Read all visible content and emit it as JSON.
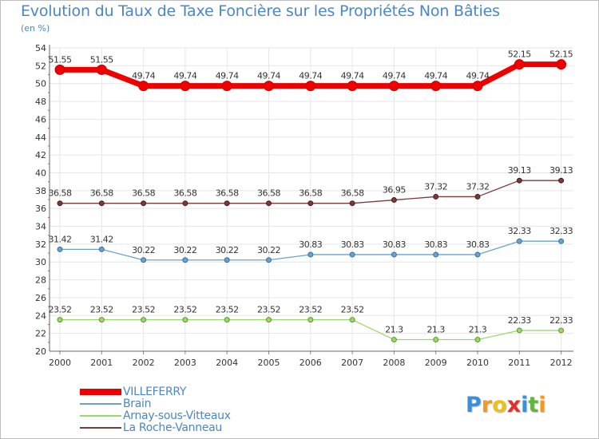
{
  "chart_data": {
    "type": "line",
    "title": "Evolution du Taux de Taxe Foncière sur les Propriétés Non Bâties",
    "subtitle": "(en %)",
    "xlabel": "",
    "ylabel": "",
    "ylim": [
      20,
      54
    ],
    "yticks": [
      20,
      22,
      24,
      26,
      28,
      30,
      32,
      34,
      36,
      38,
      40,
      42,
      44,
      46,
      48,
      50,
      52,
      54
    ],
    "categories": [
      "2000",
      "2001",
      "2002",
      "2003",
      "2004",
      "2005",
      "2006",
      "2007",
      "2008",
      "2009",
      "2010",
      "2011",
      "2012"
    ],
    "grid": true,
    "legend_position": "bottom-left",
    "series": [
      {
        "name": "VILLEFERRY",
        "color": "#ee0000",
        "values": [
          51.55,
          51.55,
          49.74,
          49.74,
          49.74,
          49.74,
          49.74,
          49.74,
          49.74,
          49.74,
          49.74,
          52.15,
          52.15
        ],
        "labels": [
          "51.55",
          "51.55",
          "49.74",
          "49.74",
          "49.74",
          "49.74",
          "49.74",
          "49.74",
          "49.74",
          "49.74",
          "49.74",
          "52.15",
          "52.15"
        ]
      },
      {
        "name": "Brain",
        "color": "#6aa2cf",
        "values": [
          31.42,
          31.42,
          30.22,
          30.22,
          30.22,
          30.22,
          30.83,
          30.83,
          30.83,
          30.83,
          30.83,
          32.33,
          32.33
        ],
        "labels": [
          "31.42",
          "31.42",
          "30.22",
          "30.22",
          "30.22",
          "30.22",
          "30.83",
          "30.83",
          "30.83",
          "30.83",
          "30.83",
          "32.33",
          "32.33"
        ]
      },
      {
        "name": "Arnay-sous-Vitteaux",
        "color": "#9ad86a",
        "values": [
          23.52,
          23.52,
          23.52,
          23.52,
          23.52,
          23.52,
          23.52,
          23.52,
          21.3,
          21.3,
          21.3,
          22.33,
          22.33
        ],
        "labels": [
          "23.52",
          "23.52",
          "23.52",
          "23.52",
          "23.52",
          "23.52",
          "23.52",
          "23.52",
          "21.3",
          "21.3",
          "21.3",
          "22.33",
          "22.33"
        ]
      },
      {
        "name": "La Roche-Vanneau",
        "color": "#7a3a3a",
        "values": [
          36.58,
          36.58,
          36.58,
          36.58,
          36.58,
          36.58,
          36.58,
          36.58,
          36.95,
          37.32,
          37.32,
          39.13,
          39.13
        ],
        "labels": [
          "36.58",
          "36.58",
          "36.58",
          "36.58",
          "36.58",
          "36.58",
          "36.58",
          "36.58",
          "36.95",
          "37.32",
          "37.32",
          "39.13",
          "39.13"
        ]
      }
    ]
  },
  "logo": {
    "text": "Proxiti",
    "letters": [
      {
        "char": "P",
        "color": "#3a8fd8"
      },
      {
        "char": "r",
        "color": "#f39a1e"
      },
      {
        "char": "o",
        "color": "#e8c21a"
      },
      {
        "char": "x",
        "color": "#e2302b"
      },
      {
        "char": "i",
        "color": "#3a8fd8"
      },
      {
        "char": "t",
        "color": "#5fb63a"
      },
      {
        "char": "i",
        "color": "#f39a1e"
      }
    ]
  }
}
